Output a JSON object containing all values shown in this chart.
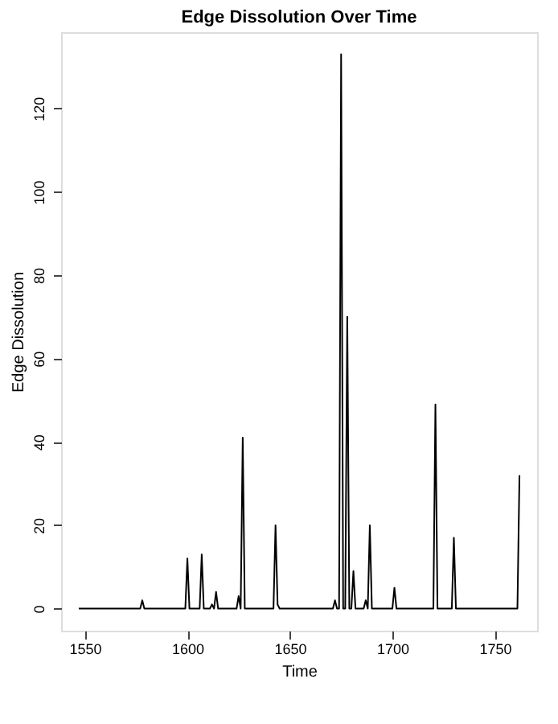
{
  "chart_data": {
    "type": "line",
    "title": "Edge Dissolution Over Time",
    "xlabel": "Time",
    "ylabel": "Edge Dissolution",
    "x": [
      1547,
      1577,
      1578,
      1579,
      1599,
      1600,
      1601,
      1606,
      1607,
      1608,
      1611,
      1612,
      1613,
      1614,
      1615,
      1624,
      1625,
      1626,
      1627,
      1628,
      1642,
      1643,
      1644,
      1645,
      1671,
      1672,
      1673,
      1674,
      1675,
      1676,
      1677,
      1678,
      1679,
      1680,
      1681,
      1682,
      1686,
      1687,
      1688,
      1689,
      1690,
      1700,
      1701,
      1702,
      1720,
      1721,
      1722,
      1729,
      1730,
      1731,
      1761,
      1762
    ],
    "series": [
      {
        "color": "#000000",
        "values": [
          0,
          0,
          2,
          0,
          0,
          12,
          0,
          0,
          13,
          0,
          0,
          1,
          0,
          4,
          0,
          0,
          3,
          0,
          41,
          0,
          0,
          20,
          1,
          0,
          0,
          2,
          0,
          0,
          133,
          0,
          0,
          70,
          0,
          0,
          9,
          0,
          0,
          2,
          0,
          20,
          0,
          0,
          5,
          0,
          0,
          49,
          0,
          0,
          17,
          0,
          0,
          32
        ]
      }
    ],
    "xlim": [
      1538.4,
      1770.6
    ],
    "ylim": [
      -5.3,
      138.3
    ],
    "xticks": [
      1550,
      1600,
      1650,
      1700,
      1750
    ],
    "yticks": [
      0,
      20,
      40,
      60,
      80,
      100,
      120
    ],
    "grid": false,
    "legend": false,
    "marker": "none",
    "line_style": "solid"
  }
}
